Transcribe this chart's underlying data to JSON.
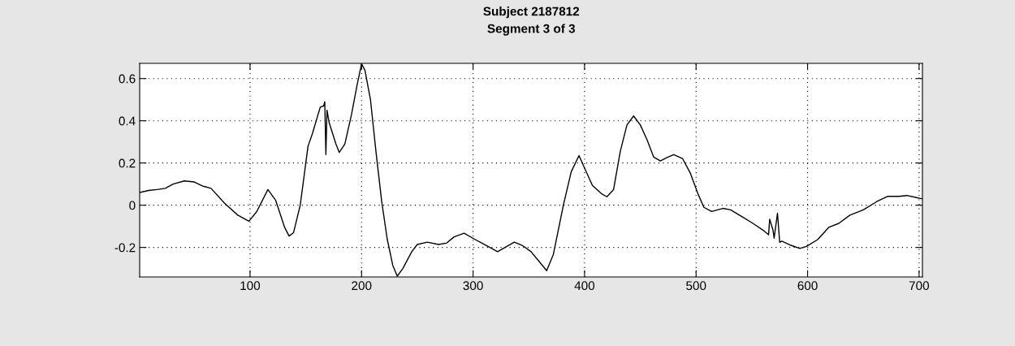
{
  "chart_data": {
    "type": "line",
    "title": "Subject 2187812",
    "subtitle": "Segment 3 of 3",
    "x": [
      1,
      9,
      16.6,
      24,
      31,
      41,
      50,
      58,
      65,
      77,
      89,
      99,
      106,
      116,
      123,
      131,
      135,
      139,
      145,
      152,
      156,
      161,
      163,
      166,
      167,
      168,
      169,
      171,
      177,
      180,
      185,
      191,
      196,
      200,
      203,
      208,
      213,
      218,
      223,
      228,
      232,
      237,
      245,
      250,
      259,
      269,
      276,
      283,
      292,
      301,
      308,
      322,
      337,
      344,
      352,
      359,
      366,
      372,
      381,
      388,
      395,
      401,
      407,
      415,
      420,
      426,
      432,
      438,
      444,
      450,
      456,
      462,
      468,
      474,
      480,
      488,
      495,
      502,
      507,
      514,
      524,
      531,
      541,
      551,
      560,
      565,
      566,
      569,
      570,
      573,
      575,
      577,
      585,
      593,
      599,
      609,
      619,
      628,
      638,
      650,
      662,
      672,
      682,
      689,
      696,
      703
    ],
    "series": [
      {
        "color": "#000000",
        "values": [
          0.06,
          0.07,
          0.074,
          0.08,
          0.1,
          0.115,
          0.11,
          0.09,
          0.08,
          0.01,
          -0.047,
          -0.076,
          -0.03,
          0.074,
          0.023,
          -0.105,
          -0.146,
          -0.13,
          0.0,
          0.28,
          0.34,
          0.43,
          0.465,
          0.47,
          0.49,
          0.24,
          0.45,
          0.39,
          0.29,
          0.25,
          0.29,
          0.43,
          0.57,
          0.67,
          0.64,
          0.5,
          0.25,
          0.02,
          -0.16,
          -0.285,
          -0.336,
          -0.3,
          -0.22,
          -0.186,
          -0.175,
          -0.186,
          -0.18,
          -0.15,
          -0.133,
          -0.16,
          -0.18,
          -0.22,
          -0.175,
          -0.19,
          -0.22,
          -0.265,
          -0.31,
          -0.233,
          0.0,
          0.158,
          0.235,
          0.164,
          0.094,
          0.055,
          0.04,
          0.074,
          0.254,
          0.38,
          0.423,
          0.38,
          0.31,
          0.228,
          0.21,
          0.226,
          0.24,
          0.22,
          0.15,
          0.05,
          -0.01,
          -0.03,
          -0.015,
          -0.022,
          -0.054,
          -0.086,
          -0.118,
          -0.14,
          -0.067,
          -0.118,
          -0.156,
          -0.038,
          -0.176,
          -0.17,
          -0.19,
          -0.205,
          -0.195,
          -0.163,
          -0.105,
          -0.086,
          -0.047,
          -0.022,
          0.017,
          0.042,
          0.042,
          0.046,
          0.038,
          0.03
        ]
      }
    ],
    "xlim": [
      1,
      703
    ],
    "ylim": [
      -0.34,
      0.672
    ],
    "xticks": [
      100,
      200,
      300,
      400,
      500,
      600,
      700
    ],
    "yticks": [
      -0.2,
      0,
      0.2,
      0.4,
      0.6
    ],
    "grid": true,
    "line_style": "solid",
    "marker": "none"
  }
}
